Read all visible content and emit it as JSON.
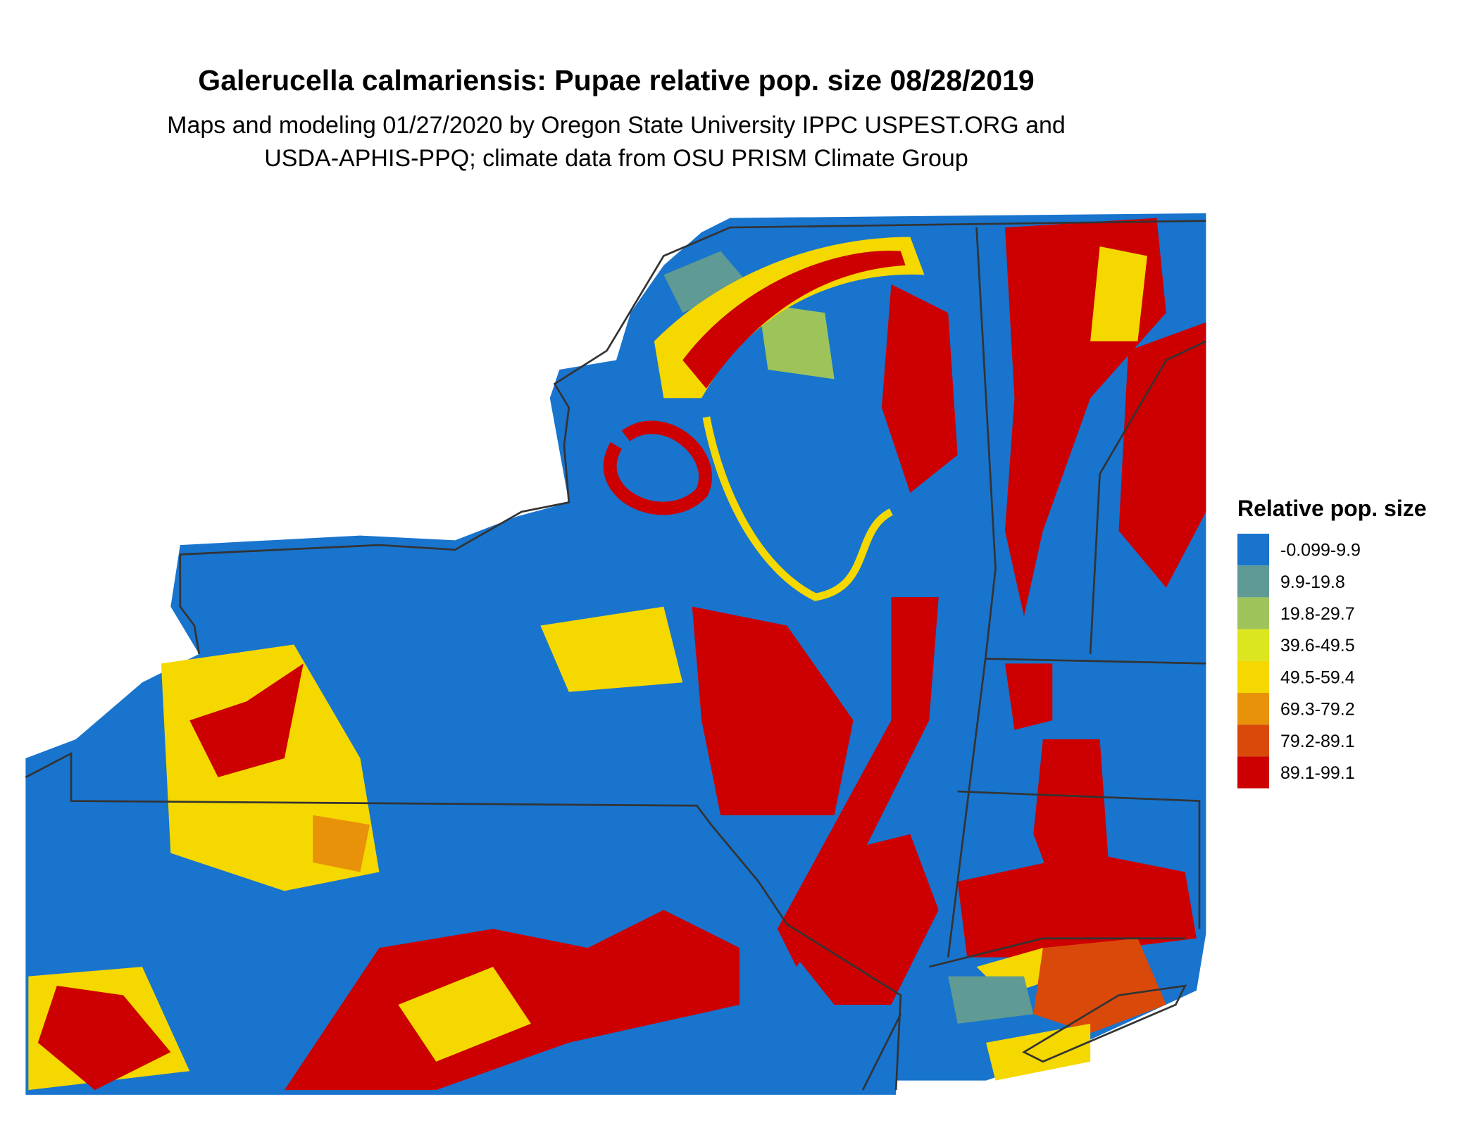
{
  "header": {
    "title": "Galerucella calmariensis: Pupae relative pop. size 08/28/2019",
    "subtitle_lines": [
      "Maps and modeling 01/27/2020 by Oregon State University IPPC USPEST.ORG and",
      "USDA-APHIS-PPQ; climate data from OSU PRISM Climate Group"
    ]
  },
  "legend": {
    "title": "Relative pop. size",
    "items": [
      {
        "label": "-0.099-9.9",
        "color": "#1874cd"
      },
      {
        "label": "9.9-19.8",
        "color": "#5f9a94"
      },
      {
        "label": "19.8-29.7",
        "color": "#9dc35a"
      },
      {
        "label": "39.6-49.5",
        "color": "#dce61e"
      },
      {
        "label": "49.5-59.4",
        "color": "#f5d800"
      },
      {
        "label": "69.3-79.2",
        "color": "#e8920a"
      },
      {
        "label": "79.2-89.1",
        "color": "#d94a0a"
      },
      {
        "label": "89.1-99.1",
        "color": "#cc0000"
      }
    ]
  }
}
